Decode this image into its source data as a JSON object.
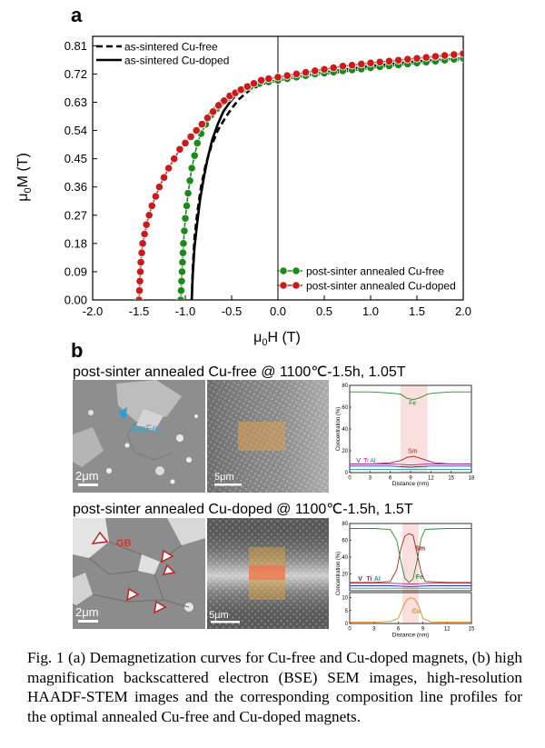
{
  "panel_a_label": "a",
  "panel_b_label": "b",
  "chart_data": [
    {
      "type": "line",
      "xlabel_main": "μ",
      "xlabel_sub": "0",
      "xlabel_rest": "H (T)",
      "ylabel_main": "μ",
      "ylabel_sub": "0",
      "ylabel_rest": "M (T)",
      "xlim": [
        -2.0,
        2.0
      ],
      "ylim": [
        0.0,
        0.84
      ],
      "x_ticks": [
        "-2.0",
        "-1.5",
        "-1.0",
        "-0.5",
        "0.0",
        "0.5",
        "1.0",
        "1.5",
        "2.0"
      ],
      "x_tick_values": [
        -2.0,
        -1.5,
        -1.0,
        -0.5,
        0.0,
        0.5,
        1.0,
        1.5,
        2.0
      ],
      "y_ticks": [
        "0.00",
        "0.09",
        "0.18",
        "0.27",
        "0.36",
        "0.45",
        "0.54",
        "0.63",
        "0.72",
        "0.81"
      ],
      "y_tick_values": [
        0.0,
        0.09,
        0.18,
        0.27,
        0.36,
        0.45,
        0.54,
        0.63,
        0.72,
        0.81
      ],
      "legend_top_left": [
        "as-sintered Cu-free",
        "as-sintered Cu-doped"
      ],
      "legend_bottom_right": [
        "post-sinter annealed Cu-free",
        "post-sinter annealed Cu-doped"
      ],
      "series": [
        {
          "name": "as-sintered Cu-free",
          "color": "#000000",
          "style": "dashed",
          "x": [
            -0.93,
            -0.92,
            -0.9,
            -0.87,
            -0.83,
            -0.78,
            -0.72,
            -0.65,
            -0.57,
            -0.5,
            -0.42,
            -0.3,
            -0.15,
            0.0,
            0.5,
            1.0,
            1.5,
            2.0
          ],
          "y": [
            0.0,
            0.1,
            0.2,
            0.28,
            0.36,
            0.43,
            0.49,
            0.54,
            0.58,
            0.61,
            0.64,
            0.67,
            0.69,
            0.7,
            0.72,
            0.74,
            0.755,
            0.765
          ]
        },
        {
          "name": "as-sintered Cu-doped",
          "color": "#000000",
          "style": "solid",
          "x": [
            -0.93,
            -0.92,
            -0.9,
            -0.87,
            -0.84,
            -0.8,
            -0.76,
            -0.71,
            -0.65,
            -0.59,
            -0.52,
            -0.45,
            -0.35,
            -0.2,
            0.0,
            0.5,
            1.0,
            1.5,
            2.0
          ],
          "y": [
            0.0,
            0.08,
            0.17,
            0.25,
            0.32,
            0.39,
            0.45,
            0.51,
            0.56,
            0.6,
            0.63,
            0.655,
            0.675,
            0.69,
            0.7,
            0.725,
            0.745,
            0.76,
            0.77
          ]
        },
        {
          "name": "post-sinter annealed Cu-free",
          "color": "#1a8a1a",
          "style": "markers",
          "x": [
            -1.05,
            -1.045,
            -1.04,
            -1.035,
            -1.03,
            -1.025,
            -1.02,
            -1.01,
            -1.0,
            -0.985,
            -0.97,
            -0.95,
            -0.93,
            -0.9,
            -0.87,
            -0.83,
            -0.78,
            -0.72,
            -0.66,
            -0.6,
            -0.53,
            -0.46,
            -0.38,
            -0.3,
            -0.2,
            -0.1,
            0.0,
            0.1,
            0.2,
            0.3,
            0.4,
            0.5,
            0.6,
            0.7,
            0.8,
            0.9,
            1.0,
            1.1,
            1.2,
            1.3,
            1.4,
            1.5,
            1.6,
            1.7,
            1.8,
            1.9,
            2.0
          ],
          "y": [
            0.0,
            0.03,
            0.06,
            0.09,
            0.12,
            0.15,
            0.18,
            0.22,
            0.26,
            0.3,
            0.34,
            0.38,
            0.42,
            0.46,
            0.5,
            0.53,
            0.56,
            0.59,
            0.61,
            0.63,
            0.645,
            0.66,
            0.67,
            0.68,
            0.69,
            0.695,
            0.7,
            0.705,
            0.71,
            0.715,
            0.72,
            0.723,
            0.726,
            0.73,
            0.733,
            0.736,
            0.74,
            0.743,
            0.746,
            0.749,
            0.752,
            0.755,
            0.758,
            0.761,
            0.764,
            0.767,
            0.77
          ]
        },
        {
          "name": "post-sinter annealed Cu-doped",
          "color": "#cc1a1a",
          "style": "markers",
          "x": [
            -1.5,
            -1.495,
            -1.49,
            -1.485,
            -1.48,
            -1.47,
            -1.46,
            -1.44,
            -1.42,
            -1.39,
            -1.36,
            -1.32,
            -1.28,
            -1.23,
            -1.18,
            -1.12,
            -1.06,
            -1.0,
            -0.94,
            -0.88,
            -0.82,
            -0.76,
            -0.7,
            -0.64,
            -0.58,
            -0.52,
            -0.46,
            -0.4,
            -0.33,
            -0.26,
            -0.18,
            -0.1,
            0.0,
            0.1,
            0.2,
            0.3,
            0.4,
            0.5,
            0.6,
            0.7,
            0.8,
            0.9,
            1.0,
            1.1,
            1.2,
            1.3,
            1.4,
            1.5,
            1.6,
            1.7,
            1.8,
            1.9,
            2.0
          ],
          "y": [
            0.0,
            0.03,
            0.06,
            0.09,
            0.12,
            0.15,
            0.18,
            0.21,
            0.24,
            0.27,
            0.3,
            0.33,
            0.36,
            0.39,
            0.42,
            0.45,
            0.48,
            0.5,
            0.52,
            0.54,
            0.56,
            0.58,
            0.6,
            0.62,
            0.635,
            0.65,
            0.66,
            0.67,
            0.68,
            0.69,
            0.7,
            0.705,
            0.71,
            0.715,
            0.72,
            0.725,
            0.73,
            0.735,
            0.74,
            0.745,
            0.748,
            0.752,
            0.755,
            0.758,
            0.761,
            0.764,
            0.767,
            0.77,
            0.773,
            0.776,
            0.779,
            0.782,
            0.785
          ]
        }
      ]
    },
    {
      "type": "line",
      "xlabel": "Distance (nm)",
      "ylabel": "Concentration (%)",
      "xlim": [
        0,
        18
      ],
      "ylim": [
        0,
        80
      ],
      "x_ticks": [
        "0",
        "3",
        "6",
        "9",
        "12",
        "15",
        "18"
      ],
      "x_tick_values": [
        0,
        3,
        6,
        9,
        12,
        15,
        18
      ],
      "y_ticks": [
        "0",
        "20",
        "40",
        "60",
        "80"
      ],
      "y_tick_values": [
        0,
        20,
        40,
        60,
        80
      ],
      "highlight_x": [
        7.5,
        11.5
      ],
      "labels": [
        "Fe",
        "Sm",
        "V",
        "Ti",
        "Al"
      ],
      "series": [
        {
          "name": "Fe",
          "color": "#2a8a2a",
          "x": [
            0,
            3,
            6,
            7.5,
            8.5,
            9.5,
            10.5,
            11.5,
            12.5,
            15,
            18
          ],
          "y": [
            74,
            74,
            73,
            72,
            68,
            67,
            69,
            72,
            73,
            74,
            74
          ]
        },
        {
          "name": "Sm",
          "color": "#b02020",
          "x": [
            0,
            3,
            6,
            7.5,
            8.5,
            9.5,
            10.5,
            11.5,
            12.5,
            15,
            18
          ],
          "y": [
            8,
            8,
            9,
            11,
            14,
            15,
            13,
            11,
            9,
            8,
            8
          ]
        },
        {
          "name": "V",
          "color": "#3030a0",
          "x": [
            0,
            6,
            9,
            12,
            18
          ],
          "y": [
            6,
            6,
            5,
            6,
            6
          ]
        },
        {
          "name": "Ti",
          "color": "#a020a0",
          "x": [
            0,
            6,
            9,
            12,
            18
          ],
          "y": [
            8,
            8,
            7,
            8,
            8
          ]
        },
        {
          "name": "Al",
          "color": "#20a0a0",
          "x": [
            0,
            6,
            9,
            12,
            18
          ],
          "y": [
            3,
            3,
            3,
            3,
            3
          ]
        }
      ]
    },
    {
      "type": "line",
      "xlabel": "Distance (nm)",
      "ylabel": "Concentration (%)",
      "xlim": [
        0,
        15
      ],
      "ylim": [
        0,
        80
      ],
      "x_ticks": [
        "0",
        "3",
        "6",
        "9",
        "12",
        "15"
      ],
      "x_tick_values": [
        0,
        3,
        6,
        9,
        12,
        15
      ],
      "y_ticks_top": [
        "20",
        "40",
        "60",
        "80"
      ],
      "y_ticks_top_values": [
        20,
        40,
        60,
        80
      ],
      "y_ticks_bottom": [
        "0",
        "5",
        "10"
      ],
      "y_ticks_bottom_values": [
        0,
        5,
        10
      ],
      "highlight_x": [
        6.5,
        8.5
      ],
      "labels": [
        "Sm",
        "Fe",
        "V",
        "Ti",
        "Al",
        "Cu"
      ],
      "series": [
        {
          "name": "Fe",
          "color": "#2a8a2a",
          "x": [
            0,
            3,
            5,
            5.8,
            6.3,
            6.8,
            7.3,
            7.8,
            8.3,
            8.8,
            9.3,
            12,
            15
          ],
          "y": [
            74,
            74,
            73,
            60,
            35,
            15,
            10,
            14,
            35,
            62,
            73,
            74,
            74
          ]
        },
        {
          "name": "Sm",
          "color": "#b02020",
          "x": [
            0,
            3,
            5,
            5.8,
            6.3,
            6.8,
            7.3,
            7.8,
            8.3,
            8.8,
            9.3,
            12,
            15
          ],
          "y": [
            10,
            10,
            11,
            25,
            50,
            65,
            68,
            66,
            45,
            22,
            11,
            10,
            10
          ]
        },
        {
          "name": "V",
          "color": "#3030a0",
          "x": [
            0,
            5,
            7.5,
            10,
            15
          ],
          "y": [
            6,
            6,
            5,
            6,
            6
          ]
        },
        {
          "name": "Ti",
          "color": "#a020a0",
          "x": [
            0,
            5,
            7.5,
            10,
            15
          ],
          "y": [
            9,
            9,
            8,
            9,
            9
          ]
        },
        {
          "name": "Al",
          "color": "#20a0a0",
          "x": [
            0,
            5,
            7.5,
            10,
            15
          ],
          "y": [
            3,
            3,
            3,
            3,
            3
          ]
        },
        {
          "name": "Cu",
          "color": "#e08a20",
          "x": [
            0,
            3,
            5,
            6,
            6.5,
            7,
            7.5,
            8,
            8.5,
            9,
            10,
            12,
            15
          ],
          "y": [
            0.5,
            0.5,
            0.8,
            2,
            6,
            9,
            10,
            9.5,
            7,
            2,
            0.6,
            0.5,
            0.5
          ]
        }
      ]
    }
  ],
  "panel_b": {
    "row1_title": "post-sinter annealed Cu-free @ 1100℃-1.5h, 1.05T",
    "row2_title": "post-sinter annealed Cu-doped @ 1100℃-1.5h, 1.5T",
    "row1_phase_label_main": "SmFe",
    "row1_phase_label_sub": "2",
    "row1_sem_scale": "2μm",
    "row1_stem_scale": "5μm",
    "row2_gb_label": "GB",
    "row2_sem_scale": "2μm",
    "row2_stem_scale": "5μm"
  },
  "caption": "Fig. 1 (a) Demagnetization curves for Cu-free and Cu-doped magnets, (b) high magnification backscattered electron (BSE) SEM images, high-resolution HAADF-STEM images and the corresponding composition line profiles for the optimal annealed Cu-free and Cu-doped magnets."
}
